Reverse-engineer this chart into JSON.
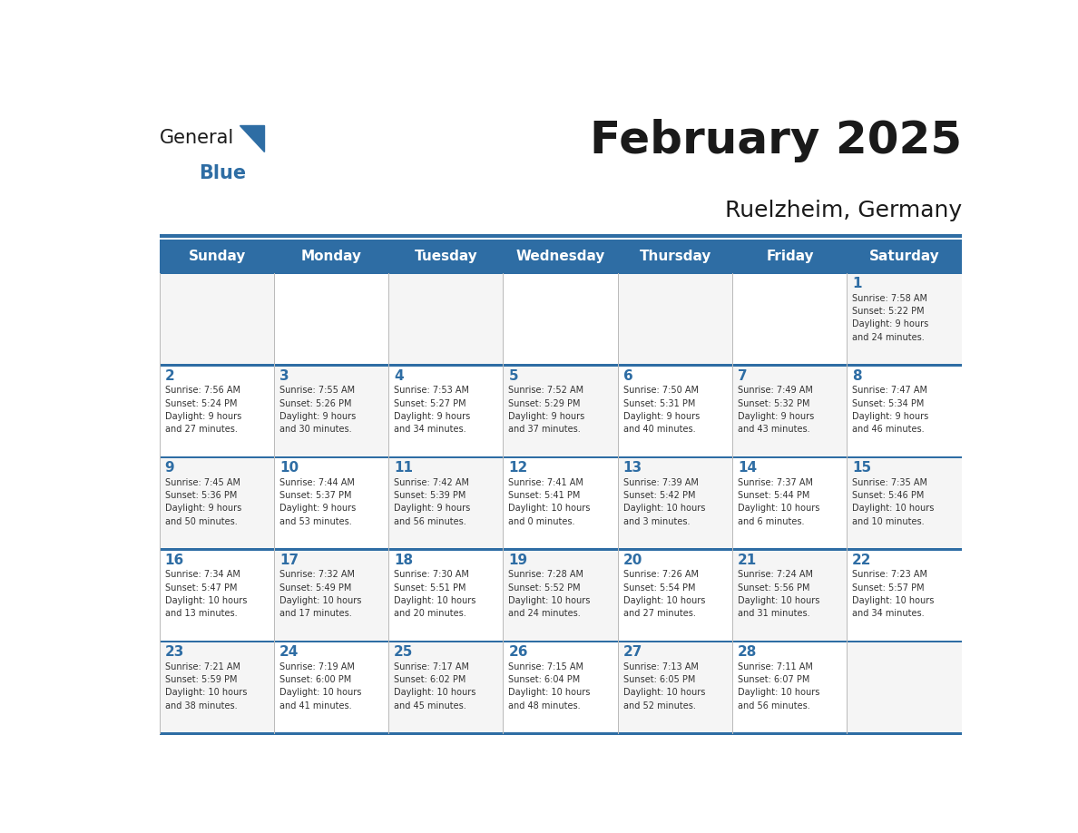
{
  "title": "February 2025",
  "subtitle": "Ruelzheim, Germany",
  "header_bg": "#2E6DA4",
  "header_text_color": "#FFFFFF",
  "day_headers": [
    "Sunday",
    "Monday",
    "Tuesday",
    "Wednesday",
    "Thursday",
    "Friday",
    "Saturday"
  ],
  "day_num_color": "#2E6DA4",
  "text_color": "#333333",
  "line_color": "#2E6DA4",
  "weeks": [
    [
      {
        "day": null,
        "info": null
      },
      {
        "day": null,
        "info": null
      },
      {
        "day": null,
        "info": null
      },
      {
        "day": null,
        "info": null
      },
      {
        "day": null,
        "info": null
      },
      {
        "day": null,
        "info": null
      },
      {
        "day": 1,
        "info": "Sunrise: 7:58 AM\nSunset: 5:22 PM\nDaylight: 9 hours\nand 24 minutes."
      }
    ],
    [
      {
        "day": 2,
        "info": "Sunrise: 7:56 AM\nSunset: 5:24 PM\nDaylight: 9 hours\nand 27 minutes."
      },
      {
        "day": 3,
        "info": "Sunrise: 7:55 AM\nSunset: 5:26 PM\nDaylight: 9 hours\nand 30 minutes."
      },
      {
        "day": 4,
        "info": "Sunrise: 7:53 AM\nSunset: 5:27 PM\nDaylight: 9 hours\nand 34 minutes."
      },
      {
        "day": 5,
        "info": "Sunrise: 7:52 AM\nSunset: 5:29 PM\nDaylight: 9 hours\nand 37 minutes."
      },
      {
        "day": 6,
        "info": "Sunrise: 7:50 AM\nSunset: 5:31 PM\nDaylight: 9 hours\nand 40 minutes."
      },
      {
        "day": 7,
        "info": "Sunrise: 7:49 AM\nSunset: 5:32 PM\nDaylight: 9 hours\nand 43 minutes."
      },
      {
        "day": 8,
        "info": "Sunrise: 7:47 AM\nSunset: 5:34 PM\nDaylight: 9 hours\nand 46 minutes."
      }
    ],
    [
      {
        "day": 9,
        "info": "Sunrise: 7:45 AM\nSunset: 5:36 PM\nDaylight: 9 hours\nand 50 minutes."
      },
      {
        "day": 10,
        "info": "Sunrise: 7:44 AM\nSunset: 5:37 PM\nDaylight: 9 hours\nand 53 minutes."
      },
      {
        "day": 11,
        "info": "Sunrise: 7:42 AM\nSunset: 5:39 PM\nDaylight: 9 hours\nand 56 minutes."
      },
      {
        "day": 12,
        "info": "Sunrise: 7:41 AM\nSunset: 5:41 PM\nDaylight: 10 hours\nand 0 minutes."
      },
      {
        "day": 13,
        "info": "Sunrise: 7:39 AM\nSunset: 5:42 PM\nDaylight: 10 hours\nand 3 minutes."
      },
      {
        "day": 14,
        "info": "Sunrise: 7:37 AM\nSunset: 5:44 PM\nDaylight: 10 hours\nand 6 minutes."
      },
      {
        "day": 15,
        "info": "Sunrise: 7:35 AM\nSunset: 5:46 PM\nDaylight: 10 hours\nand 10 minutes."
      }
    ],
    [
      {
        "day": 16,
        "info": "Sunrise: 7:34 AM\nSunset: 5:47 PM\nDaylight: 10 hours\nand 13 minutes."
      },
      {
        "day": 17,
        "info": "Sunrise: 7:32 AM\nSunset: 5:49 PM\nDaylight: 10 hours\nand 17 minutes."
      },
      {
        "day": 18,
        "info": "Sunrise: 7:30 AM\nSunset: 5:51 PM\nDaylight: 10 hours\nand 20 minutes."
      },
      {
        "day": 19,
        "info": "Sunrise: 7:28 AM\nSunset: 5:52 PM\nDaylight: 10 hours\nand 24 minutes."
      },
      {
        "day": 20,
        "info": "Sunrise: 7:26 AM\nSunset: 5:54 PM\nDaylight: 10 hours\nand 27 minutes."
      },
      {
        "day": 21,
        "info": "Sunrise: 7:24 AM\nSunset: 5:56 PM\nDaylight: 10 hours\nand 31 minutes."
      },
      {
        "day": 22,
        "info": "Sunrise: 7:23 AM\nSunset: 5:57 PM\nDaylight: 10 hours\nand 34 minutes."
      }
    ],
    [
      {
        "day": 23,
        "info": "Sunrise: 7:21 AM\nSunset: 5:59 PM\nDaylight: 10 hours\nand 38 minutes."
      },
      {
        "day": 24,
        "info": "Sunrise: 7:19 AM\nSunset: 6:00 PM\nDaylight: 10 hours\nand 41 minutes."
      },
      {
        "day": 25,
        "info": "Sunrise: 7:17 AM\nSunset: 6:02 PM\nDaylight: 10 hours\nand 45 minutes."
      },
      {
        "day": 26,
        "info": "Sunrise: 7:15 AM\nSunset: 6:04 PM\nDaylight: 10 hours\nand 48 minutes."
      },
      {
        "day": 27,
        "info": "Sunrise: 7:13 AM\nSunset: 6:05 PM\nDaylight: 10 hours\nand 52 minutes."
      },
      {
        "day": 28,
        "info": "Sunrise: 7:11 AM\nSunset: 6:07 PM\nDaylight: 10 hours\nand 56 minutes."
      },
      {
        "day": null,
        "info": null
      }
    ]
  ]
}
